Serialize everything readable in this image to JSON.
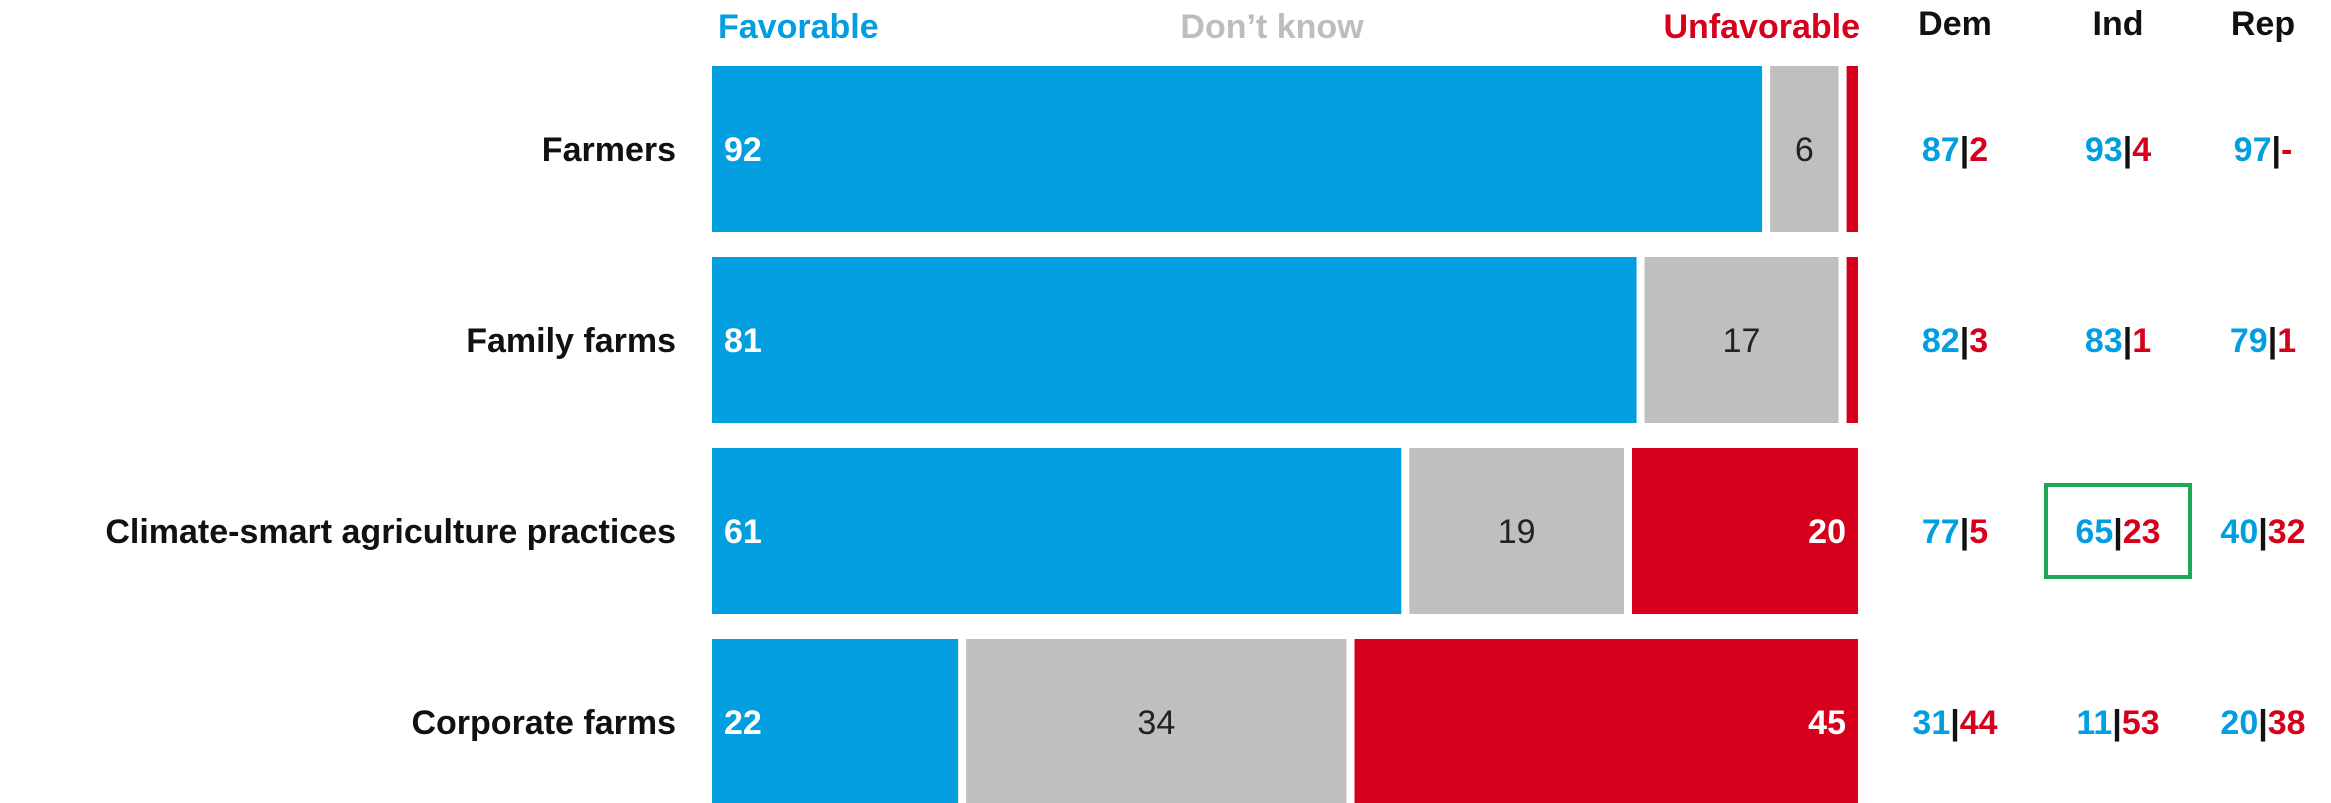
{
  "chart_data": {
    "type": "bar",
    "orientation": "horizontal",
    "stacked": true,
    "normalized_percent": true,
    "categories": [
      "Farmers",
      "Family farms",
      "Climate-smart agriculture practices",
      "Corporate farms"
    ],
    "series": [
      {
        "name": "Favorable",
        "color": "#039EDF",
        "values": [
          92,
          81,
          61,
          22
        ],
        "labels": [
          "92",
          "81",
          "61",
          "22"
        ]
      },
      {
        "name": "Don’t know",
        "color": "#BFBFBE",
        "values": [
          6,
          17,
          19,
          34
        ],
        "labels": [
          "6",
          "17",
          "19",
          "34"
        ]
      },
      {
        "name": "Unfavorable",
        "color": "#D6001C",
        "values": [
          1,
          1,
          20,
          45
        ],
        "labels": [
          "",
          "",
          "20",
          "45"
        ]
      }
    ],
    "party_breakdown": {
      "columns": [
        "Dem",
        "Ind",
        "Rep"
      ],
      "rows": [
        [
          {
            "fav": "87",
            "unfav": "2"
          },
          {
            "fav": "93",
            "unfav": "4"
          },
          {
            "fav": "97",
            "unfav": "-"
          }
        ],
        [
          {
            "fav": "82",
            "unfav": "3"
          },
          {
            "fav": "83",
            "unfav": "1"
          },
          {
            "fav": "79",
            "unfav": "1"
          }
        ],
        [
          {
            "fav": "77",
            "unfav": "5"
          },
          {
            "fav": "65",
            "unfav": "23"
          },
          {
            "fav": "40",
            "unfav": "32"
          }
        ],
        [
          {
            "fav": "31",
            "unfav": "44"
          },
          {
            "fav": "11",
            "unfav": "53"
          },
          {
            "fav": "20",
            "unfav": "38"
          }
        ]
      ],
      "separator": "|",
      "highlight": {
        "row": 2,
        "col": 1,
        "color": "#1AAA55"
      }
    },
    "colors": {
      "favorable": "#039EDF",
      "dont_know": "#BFBFBE",
      "unfavorable": "#D6001C",
      "separator": "#111111",
      "light_label": "#BDBDBD"
    },
    "grid": false
  }
}
